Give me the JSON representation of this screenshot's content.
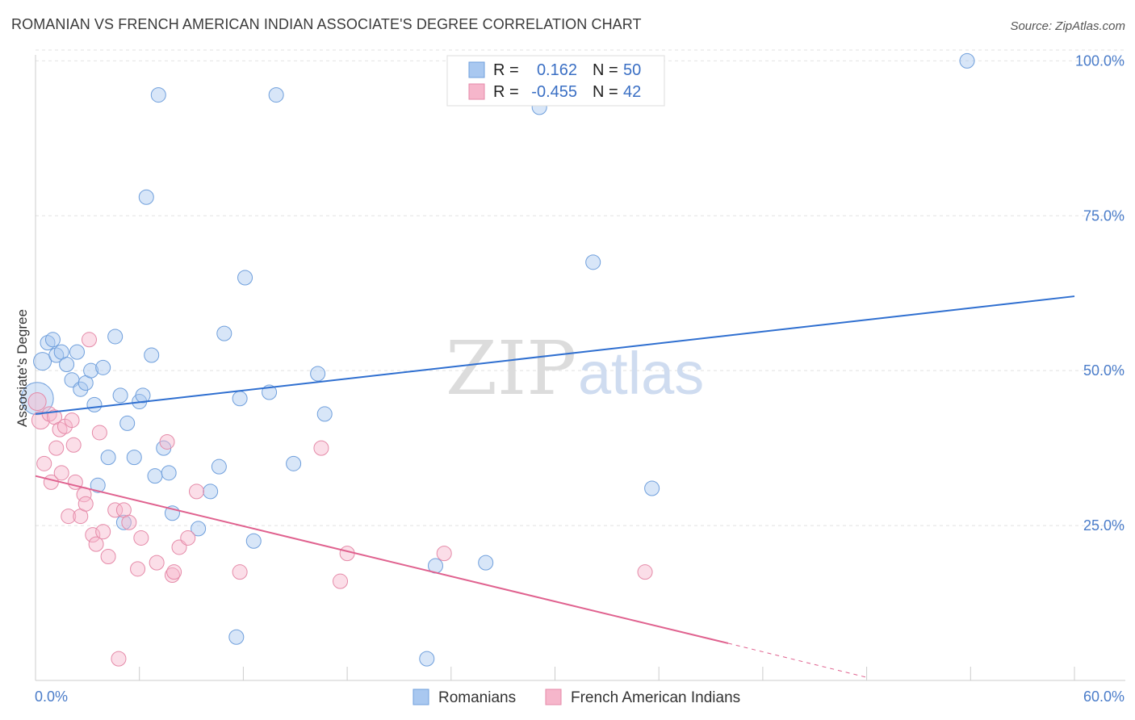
{
  "header": {
    "title": "ROMANIAN VS FRENCH AMERICAN INDIAN ASSOCIATE'S DEGREE CORRELATION CHART",
    "source": "Source: ZipAtlas.com"
  },
  "watermark": {
    "zip": "ZIP",
    "atlas": "atlas"
  },
  "stats": [
    {
      "r_label": "R =",
      "r_value": "0.162",
      "n_label": "N =",
      "n_value": "50",
      "color": "#a9c8f0"
    },
    {
      "r_label": "R =",
      "r_value": "-0.455",
      "n_label": "N =",
      "n_value": "42",
      "color": "#f6b6cb"
    }
  ],
  "legend": [
    {
      "label": "Romanians",
      "color": "#a9c8f0"
    },
    {
      "label": "French American Indians",
      "color": "#f6b6cb"
    }
  ],
  "colors": {
    "blue_line": "#2f6fd0",
    "pink_line": "#e0628f",
    "blue_fill": "rgba(169,200,240,0.45)",
    "blue_stroke": "#6f9fdc",
    "pink_fill": "rgba(246,182,203,0.45)",
    "pink_stroke": "#e58aa8",
    "grid": "#e2e2e2",
    "tick_text": "#4a7cc9"
  },
  "chart_data": {
    "type": "scatter",
    "title": "ROMANIAN VS FRENCH AMERICAN INDIAN ASSOCIATE'S DEGREE CORRELATION CHART",
    "xlabel": "",
    "ylabel": "Associate's Degree",
    "xlim": [
      0,
      60
    ],
    "ylim": [
      0,
      102
    ],
    "x_tick_labels": [
      "0.0%",
      "60.0%"
    ],
    "y_ticks": [
      25,
      50,
      75,
      100
    ],
    "y_tick_labels": [
      "25.0%",
      "50.0%",
      "75.0%",
      "100.0%"
    ],
    "grid": true,
    "legend_position": "bottom",
    "series": [
      {
        "name": "Romanians",
        "r": 0.162,
        "n": 50,
        "trend": {
          "x": [
            0,
            60
          ],
          "y": [
            43.0,
            62.0
          ]
        },
        "points": [
          [
            0.1,
            45.5,
            20
          ],
          [
            0.4,
            51.5,
            11
          ],
          [
            0.7,
            54.5,
            9
          ],
          [
            1.0,
            55.0,
            9
          ],
          [
            1.2,
            52.5,
            9
          ],
          [
            1.5,
            53.0,
            9
          ],
          [
            1.8,
            51.0,
            9
          ],
          [
            2.1,
            48.5,
            9
          ],
          [
            2.4,
            53.0,
            9
          ],
          [
            2.6,
            47.0,
            9
          ],
          [
            2.9,
            48.0,
            9
          ],
          [
            3.2,
            50.0,
            9
          ],
          [
            3.4,
            44.5,
            9
          ],
          [
            3.6,
            31.5,
            9
          ],
          [
            3.9,
            50.5,
            9
          ],
          [
            4.2,
            36.0,
            9
          ],
          [
            4.6,
            55.5,
            9
          ],
          [
            4.9,
            46.0,
            9
          ],
          [
            5.1,
            25.5,
            9
          ],
          [
            5.3,
            41.5,
            9
          ],
          [
            5.7,
            36.0,
            9
          ],
          [
            6.0,
            45.0,
            9
          ],
          [
            6.2,
            46.0,
            9
          ],
          [
            6.4,
            78.0,
            9
          ],
          [
            6.7,
            52.5,
            9
          ],
          [
            6.9,
            33.0,
            9
          ],
          [
            7.1,
            94.5,
            9
          ],
          [
            7.4,
            37.5,
            9
          ],
          [
            7.7,
            33.5,
            9
          ],
          [
            7.9,
            27.0,
            9
          ],
          [
            9.4,
            24.5,
            9
          ],
          [
            10.1,
            30.5,
            9
          ],
          [
            10.6,
            34.5,
            9
          ],
          [
            10.9,
            56.0,
            9
          ],
          [
            11.6,
            7.0,
            9
          ],
          [
            11.8,
            45.5,
            9
          ],
          [
            12.1,
            65.0,
            9
          ],
          [
            12.6,
            22.5,
            9
          ],
          [
            13.5,
            46.5,
            9
          ],
          [
            13.9,
            94.5,
            9
          ],
          [
            14.9,
            35.0,
            9
          ],
          [
            16.3,
            49.5,
            9
          ],
          [
            16.7,
            43.0,
            9
          ],
          [
            22.6,
            3.5,
            9
          ],
          [
            23.1,
            18.5,
            9
          ],
          [
            29.1,
            92.5,
            9
          ],
          [
            26.0,
            19.0,
            9
          ],
          [
            32.2,
            67.5,
            9
          ],
          [
            35.6,
            31.0,
            9
          ],
          [
            53.8,
            100.0,
            9
          ]
        ]
      },
      {
        "name": "French American Indians",
        "r": -0.455,
        "n": 42,
        "trend": {
          "x": [
            0,
            40
          ],
          "y": [
            33.0,
            6.0
          ]
        },
        "trend_dashed": {
          "x": [
            40,
            48
          ],
          "y": [
            6.0,
            0.5
          ]
        },
        "points": [
          [
            0.1,
            45.0,
            11
          ],
          [
            0.3,
            42.0,
            11
          ],
          [
            0.5,
            35.0,
            9
          ],
          [
            0.8,
            43.0,
            9
          ],
          [
            0.9,
            32.0,
            9
          ],
          [
            1.1,
            42.5,
            9
          ],
          [
            1.2,
            37.5,
            9
          ],
          [
            1.4,
            40.5,
            9
          ],
          [
            1.5,
            33.5,
            9
          ],
          [
            1.7,
            41.0,
            9
          ],
          [
            1.9,
            26.5,
            9
          ],
          [
            2.1,
            42.0,
            9
          ],
          [
            2.2,
            38.0,
            9
          ],
          [
            2.3,
            32.0,
            9
          ],
          [
            2.6,
            26.5,
            9
          ],
          [
            2.8,
            30.0,
            9
          ],
          [
            2.9,
            28.5,
            9
          ],
          [
            3.1,
            55.0,
            9
          ],
          [
            3.3,
            23.5,
            9
          ],
          [
            3.5,
            22.0,
            9
          ],
          [
            3.7,
            40.0,
            9
          ],
          [
            3.9,
            24.0,
            9
          ],
          [
            4.2,
            20.0,
            9
          ],
          [
            4.6,
            27.5,
            9
          ],
          [
            4.8,
            3.5,
            9
          ],
          [
            5.1,
            27.5,
            9
          ],
          [
            5.4,
            25.5,
            9
          ],
          [
            5.9,
            18.0,
            9
          ],
          [
            6.1,
            23.0,
            9
          ],
          [
            7.0,
            19.0,
            9
          ],
          [
            7.6,
            38.5,
            9
          ],
          [
            7.9,
            17.0,
            9
          ],
          [
            8.0,
            17.5,
            9
          ],
          [
            8.3,
            21.5,
            9
          ],
          [
            8.8,
            23.0,
            9
          ],
          [
            9.3,
            30.5,
            9
          ],
          [
            11.8,
            17.5,
            9
          ],
          [
            16.5,
            37.5,
            9
          ],
          [
            17.6,
            16.0,
            9
          ],
          [
            18.0,
            20.5,
            9
          ],
          [
            23.6,
            20.5,
            9
          ],
          [
            35.2,
            17.5,
            9
          ]
        ]
      }
    ]
  }
}
